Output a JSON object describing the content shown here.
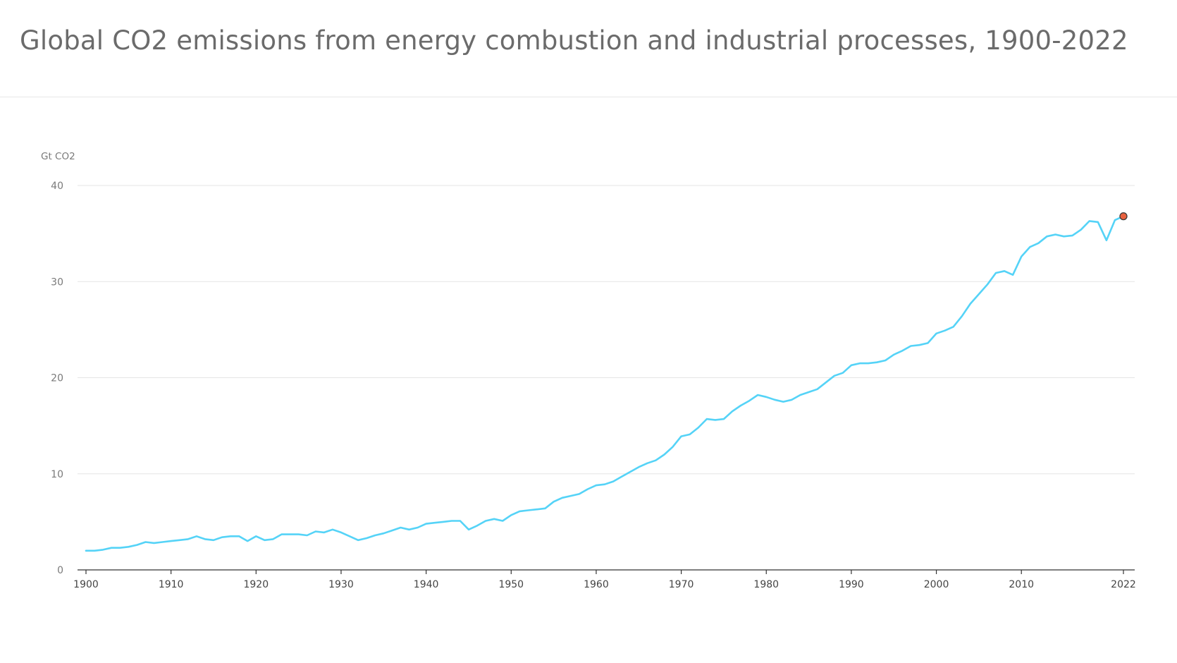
{
  "title": "Global CO2 emissions from energy combustion and industrial processes, 1900-2022",
  "chart_data": {
    "type": "line",
    "ylabel": "Gt CO2",
    "xlabel": "",
    "xlim": [
      1900,
      2022
    ],
    "ylim": [
      0,
      40
    ],
    "yticks": [
      0,
      10,
      20,
      30,
      40
    ],
    "xticks": [
      1900,
      1910,
      1920,
      1930,
      1940,
      1950,
      1960,
      1970,
      1980,
      1990,
      2000,
      2010,
      2022
    ],
    "grid": true,
    "line_color": "#55d3f7",
    "highlight_color": "#e8613f",
    "highlight_year": 2022,
    "series": [
      {
        "x": [
          1900,
          1901,
          1902,
          1903,
          1904,
          1905,
          1906,
          1907,
          1908,
          1909,
          1910,
          1911,
          1912,
          1913,
          1914,
          1915,
          1916,
          1917,
          1918,
          1919,
          1920,
          1921,
          1922,
          1923,
          1924,
          1925,
          1926,
          1927,
          1928,
          1929,
          1930,
          1931,
          1932,
          1933,
          1934,
          1935,
          1936,
          1937,
          1938,
          1939,
          1940,
          1941,
          1942,
          1943,
          1944,
          1945,
          1946,
          1947,
          1948,
          1949,
          1950,
          1951,
          1952,
          1953,
          1954,
          1955,
          1956,
          1957,
          1958,
          1959,
          1960,
          1961,
          1962,
          1963,
          1964,
          1965,
          1966,
          1967,
          1968,
          1969,
          1970,
          1971,
          1972,
          1973,
          1974,
          1975,
          1976,
          1977,
          1978,
          1979,
          1980,
          1981,
          1982,
          1983,
          1984,
          1985,
          1986,
          1987,
          1988,
          1989,
          1990,
          1991,
          1992,
          1993,
          1994,
          1995,
          1996,
          1997,
          1998,
          1999,
          2000,
          2001,
          2002,
          2003,
          2004,
          2005,
          2006,
          2007,
          2008,
          2009,
          2010,
          2011,
          2012,
          2013,
          2014,
          2015,
          2016,
          2017,
          2018,
          2019,
          2020,
          2021,
          2022
        ],
        "y": [
          2.0,
          2.0,
          2.1,
          2.3,
          2.3,
          2.4,
          2.6,
          2.9,
          2.8,
          2.9,
          3.0,
          3.1,
          3.2,
          3.5,
          3.2,
          3.1,
          3.4,
          3.5,
          3.5,
          3.0,
          3.5,
          3.1,
          3.2,
          3.7,
          3.7,
          3.7,
          3.6,
          4.0,
          3.9,
          4.2,
          3.9,
          3.5,
          3.1,
          3.3,
          3.6,
          3.8,
          4.1,
          4.4,
          4.2,
          4.4,
          4.8,
          4.9,
          5.0,
          5.1,
          5.1,
          4.2,
          4.6,
          5.1,
          5.3,
          5.1,
          5.7,
          6.1,
          6.2,
          6.3,
          6.4,
          7.1,
          7.5,
          7.7,
          7.9,
          8.4,
          8.8,
          8.9,
          9.2,
          9.7,
          10.2,
          10.7,
          11.1,
          11.4,
          12.0,
          12.8,
          13.9,
          14.1,
          14.8,
          15.7,
          15.6,
          15.7,
          16.5,
          17.1,
          17.6,
          18.2,
          18.0,
          17.7,
          17.5,
          17.7,
          18.2,
          18.5,
          18.8,
          19.5,
          20.2,
          20.5,
          21.3,
          21.5,
          21.5,
          21.6,
          21.8,
          22.4,
          22.8,
          23.3,
          23.4,
          23.6,
          24.6,
          24.9,
          25.3,
          26.4,
          27.7,
          28.7,
          29.7,
          30.9,
          31.1,
          30.7,
          32.6,
          33.6,
          34.0,
          34.7,
          34.9,
          34.7,
          34.8,
          35.4,
          36.3,
          36.2,
          34.3,
          36.4,
          36.8
        ]
      }
    ]
  }
}
